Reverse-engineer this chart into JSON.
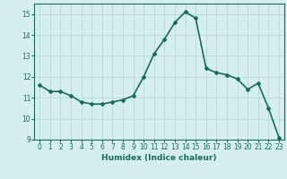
{
  "x": [
    0,
    1,
    2,
    3,
    4,
    5,
    6,
    7,
    8,
    9,
    10,
    11,
    12,
    13,
    14,
    15,
    16,
    17,
    18,
    19,
    20,
    21,
    22,
    23
  ],
  "y": [
    11.6,
    11.3,
    11.3,
    11.1,
    10.8,
    10.7,
    10.7,
    10.8,
    10.9,
    11.1,
    12.0,
    13.1,
    13.8,
    14.6,
    15.1,
    14.8,
    12.4,
    12.2,
    12.1,
    11.9,
    11.4,
    11.7,
    10.5,
    9.1
  ],
  "xlabel": "Humidex (Indice chaleur)",
  "ylim": [
    9,
    15.5
  ],
  "xlim": [
    -0.5,
    23.5
  ],
  "yticks": [
    9,
    10,
    11,
    12,
    13,
    14,
    15
  ],
  "xticks": [
    0,
    1,
    2,
    3,
    4,
    5,
    6,
    7,
    8,
    9,
    10,
    11,
    12,
    13,
    14,
    15,
    16,
    17,
    18,
    19,
    20,
    21,
    22,
    23
  ],
  "line_color": "#1a6b5a",
  "marker": "D",
  "marker_size": 2.0,
  "bg_color": "#d5efef",
  "grid_color": "#b8d8d8",
  "line_width": 1.2,
  "tick_fontsize": 5.5,
  "xlabel_fontsize": 6.5
}
